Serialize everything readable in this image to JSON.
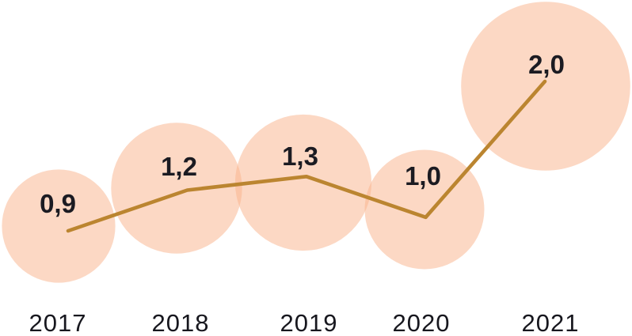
{
  "chart_data": {
    "type": "line",
    "subtype": "line-with-area-proportional-bubble-markers",
    "title": "",
    "xlabel": "",
    "ylabel": "",
    "legend": "none",
    "gridlines": false,
    "axes_visible": false,
    "categories": [
      "2017",
      "2018",
      "2019",
      "2020",
      "2021"
    ],
    "values": [
      0.9,
      1.2,
      1.3,
      1.0,
      2.0
    ],
    "point_labels": [
      "0,9",
      "1,2",
      "1,3",
      "1,0",
      "2,0"
    ],
    "decimal_separator": ",",
    "x_axis_tick_labels": [
      "2017",
      "2018",
      "2019",
      "2020",
      "2021"
    ],
    "bubble_sizing": "area proportional to value",
    "colors": {
      "bubble_fill": "#F9B189",
      "bubble_fill_opacity": 0.5,
      "line": "#BB8530",
      "point_label_text": "#1B1B22",
      "axis_label_text": "#17171E",
      "background": "#FFFFFF"
    }
  }
}
